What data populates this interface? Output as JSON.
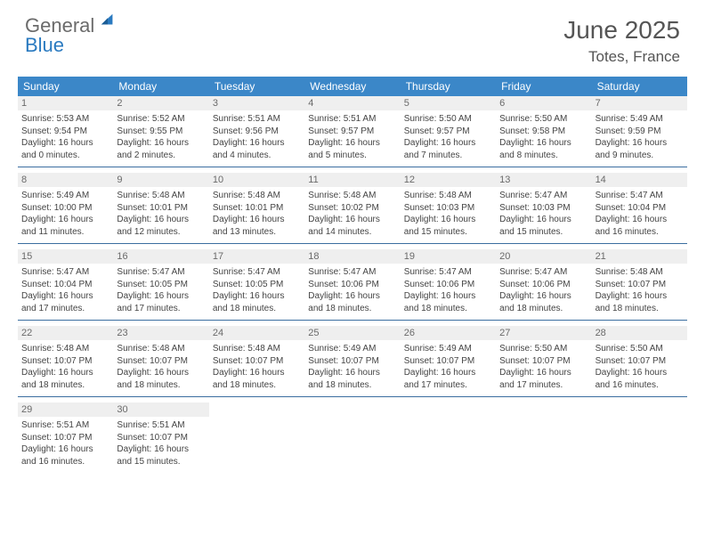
{
  "logo": {
    "line1": "General",
    "line2": "Blue"
  },
  "title": "June 2025",
  "location": "Totes, France",
  "colors": {
    "header_bg": "#3b87c8",
    "header_text": "#ffffff",
    "daynum_bg": "#efefef",
    "week_border": "#3b6ea0",
    "logo_gray": "#6b6b6b",
    "logo_blue": "#2a7ac0"
  },
  "daysOfWeek": [
    "Sunday",
    "Monday",
    "Tuesday",
    "Wednesday",
    "Thursday",
    "Friday",
    "Saturday"
  ],
  "weeks": [
    [
      {
        "n": "1",
        "sunrise": "5:53 AM",
        "sunset": "9:54 PM",
        "dl": "16 hours and 0 minutes."
      },
      {
        "n": "2",
        "sunrise": "5:52 AM",
        "sunset": "9:55 PM",
        "dl": "16 hours and 2 minutes."
      },
      {
        "n": "3",
        "sunrise": "5:51 AM",
        "sunset": "9:56 PM",
        "dl": "16 hours and 4 minutes."
      },
      {
        "n": "4",
        "sunrise": "5:51 AM",
        "sunset": "9:57 PM",
        "dl": "16 hours and 5 minutes."
      },
      {
        "n": "5",
        "sunrise": "5:50 AM",
        "sunset": "9:57 PM",
        "dl": "16 hours and 7 minutes."
      },
      {
        "n": "6",
        "sunrise": "5:50 AM",
        "sunset": "9:58 PM",
        "dl": "16 hours and 8 minutes."
      },
      {
        "n": "7",
        "sunrise": "5:49 AM",
        "sunset": "9:59 PM",
        "dl": "16 hours and 9 minutes."
      }
    ],
    [
      {
        "n": "8",
        "sunrise": "5:49 AM",
        "sunset": "10:00 PM",
        "dl": "16 hours and 11 minutes."
      },
      {
        "n": "9",
        "sunrise": "5:48 AM",
        "sunset": "10:01 PM",
        "dl": "16 hours and 12 minutes."
      },
      {
        "n": "10",
        "sunrise": "5:48 AM",
        "sunset": "10:01 PM",
        "dl": "16 hours and 13 minutes."
      },
      {
        "n": "11",
        "sunrise": "5:48 AM",
        "sunset": "10:02 PM",
        "dl": "16 hours and 14 minutes."
      },
      {
        "n": "12",
        "sunrise": "5:48 AM",
        "sunset": "10:03 PM",
        "dl": "16 hours and 15 minutes."
      },
      {
        "n": "13",
        "sunrise": "5:47 AM",
        "sunset": "10:03 PM",
        "dl": "16 hours and 15 minutes."
      },
      {
        "n": "14",
        "sunrise": "5:47 AM",
        "sunset": "10:04 PM",
        "dl": "16 hours and 16 minutes."
      }
    ],
    [
      {
        "n": "15",
        "sunrise": "5:47 AM",
        "sunset": "10:04 PM",
        "dl": "16 hours and 17 minutes."
      },
      {
        "n": "16",
        "sunrise": "5:47 AM",
        "sunset": "10:05 PM",
        "dl": "16 hours and 17 minutes."
      },
      {
        "n": "17",
        "sunrise": "5:47 AM",
        "sunset": "10:05 PM",
        "dl": "16 hours and 18 minutes."
      },
      {
        "n": "18",
        "sunrise": "5:47 AM",
        "sunset": "10:06 PM",
        "dl": "16 hours and 18 minutes."
      },
      {
        "n": "19",
        "sunrise": "5:47 AM",
        "sunset": "10:06 PM",
        "dl": "16 hours and 18 minutes."
      },
      {
        "n": "20",
        "sunrise": "5:47 AM",
        "sunset": "10:06 PM",
        "dl": "16 hours and 18 minutes."
      },
      {
        "n": "21",
        "sunrise": "5:48 AM",
        "sunset": "10:07 PM",
        "dl": "16 hours and 18 minutes."
      }
    ],
    [
      {
        "n": "22",
        "sunrise": "5:48 AM",
        "sunset": "10:07 PM",
        "dl": "16 hours and 18 minutes."
      },
      {
        "n": "23",
        "sunrise": "5:48 AM",
        "sunset": "10:07 PM",
        "dl": "16 hours and 18 minutes."
      },
      {
        "n": "24",
        "sunrise": "5:48 AM",
        "sunset": "10:07 PM",
        "dl": "16 hours and 18 minutes."
      },
      {
        "n": "25",
        "sunrise": "5:49 AM",
        "sunset": "10:07 PM",
        "dl": "16 hours and 18 minutes."
      },
      {
        "n": "26",
        "sunrise": "5:49 AM",
        "sunset": "10:07 PM",
        "dl": "16 hours and 17 minutes."
      },
      {
        "n": "27",
        "sunrise": "5:50 AM",
        "sunset": "10:07 PM",
        "dl": "16 hours and 17 minutes."
      },
      {
        "n": "28",
        "sunrise": "5:50 AM",
        "sunset": "10:07 PM",
        "dl": "16 hours and 16 minutes."
      }
    ],
    [
      {
        "n": "29",
        "sunrise": "5:51 AM",
        "sunset": "10:07 PM",
        "dl": "16 hours and 16 minutes."
      },
      {
        "n": "30",
        "sunrise": "5:51 AM",
        "sunset": "10:07 PM",
        "dl": "16 hours and 15 minutes."
      },
      null,
      null,
      null,
      null,
      null
    ]
  ],
  "labels": {
    "sunrise": "Sunrise: ",
    "sunset": "Sunset: ",
    "daylight": "Daylight: "
  }
}
